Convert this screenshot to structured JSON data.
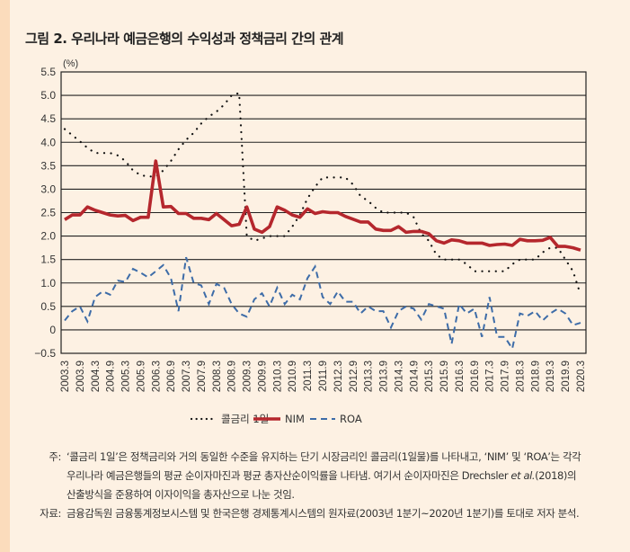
{
  "title": "그림 2.  우리나라 예금은행의 수익성과 정책금리 간의 관계",
  "chart_data": {
    "type": "line",
    "title": "",
    "ylabel": "(%)",
    "xlabel": "",
    "ylim": [
      -0.5,
      5.5
    ],
    "yticks": [
      "5.5",
      "5.0",
      "4.5",
      "4.0",
      "3.5",
      "3.0",
      "2.5",
      "2.0",
      "1.5",
      "1.0",
      "0.5",
      "0",
      "−0.5"
    ],
    "ytick_values": [
      5.5,
      5.0,
      4.5,
      4.0,
      3.5,
      3.0,
      2.5,
      2.0,
      1.5,
      1.0,
      0.5,
      0,
      -0.5
    ],
    "grid": "horizontal",
    "legend_position": "bottom",
    "x_start": "2003Q1",
    "x_end": "2020Q1",
    "frequency": "quarterly",
    "xtick_labels": [
      "2003.3",
      "2003.9",
      "2004.3",
      "2004.9",
      "2005.3",
      "2005.9",
      "2006.3",
      "2006.9",
      "2007.3",
      "2007.9",
      "2008.3",
      "2008.9",
      "2009.3",
      "2009.9",
      "2010.3",
      "2010.9",
      "2011.3",
      "2011.9",
      "2012.3",
      "2012.9",
      "2013.3",
      "2013.9",
      "2014.3",
      "2014.9",
      "2015.3",
      "2015.9",
      "2016.3",
      "2016.9",
      "2017.3",
      "2017.9",
      "2018.3",
      "2018.9",
      "2019.3",
      "2019.9",
      "2020.3"
    ],
    "series": [
      {
        "name": "콜금리 1일",
        "color": "#111111",
        "style": "dotted",
        "values": [
          4.28,
          4.15,
          4.02,
          3.88,
          3.77,
          3.77,
          3.77,
          3.72,
          3.6,
          3.4,
          3.3,
          3.27,
          3.27,
          3.4,
          3.6,
          3.85,
          4.05,
          4.2,
          4.4,
          4.55,
          4.65,
          4.8,
          5.0,
          5.05,
          2.0,
          1.9,
          1.95,
          2.0,
          2.0,
          2.0,
          2.2,
          2.45,
          2.8,
          3.05,
          3.25,
          3.25,
          3.25,
          3.25,
          3.1,
          2.85,
          2.75,
          2.6,
          2.5,
          2.5,
          2.5,
          2.5,
          2.4,
          2.05,
          1.9,
          1.6,
          1.5,
          1.5,
          1.5,
          1.4,
          1.25,
          1.25,
          1.25,
          1.25,
          1.25,
          1.4,
          1.5,
          1.5,
          1.5,
          1.65,
          1.75,
          1.75,
          1.5,
          1.25,
          0.75
        ]
      },
      {
        "name": "NIM",
        "color": "#b5272d",
        "style": "solid",
        "values": [
          2.35,
          2.45,
          2.45,
          2.62,
          2.55,
          2.5,
          2.45,
          2.43,
          2.44,
          2.33,
          2.4,
          2.4,
          3.6,
          2.62,
          2.63,
          2.48,
          2.48,
          2.38,
          2.38,
          2.35,
          2.48,
          2.35,
          2.22,
          2.25,
          2.62,
          2.15,
          2.08,
          2.2,
          2.62,
          2.55,
          2.45,
          2.4,
          2.58,
          2.48,
          2.52,
          2.5,
          2.5,
          2.42,
          2.36,
          2.3,
          2.3,
          2.15,
          2.12,
          2.12,
          2.2,
          2.08,
          2.1,
          2.1,
          2.05,
          1.9,
          1.85,
          1.92,
          1.9,
          1.85,
          1.85,
          1.85,
          1.8,
          1.82,
          1.83,
          1.8,
          1.93,
          1.9,
          1.9,
          1.91,
          1.97,
          1.78,
          1.78,
          1.75,
          1.7
        ]
      },
      {
        "name": "ROA",
        "color": "#3d6ca8",
        "style": "dashed",
        "values": [
          0.2,
          0.4,
          0.5,
          0.18,
          0.7,
          0.82,
          0.75,
          1.05,
          1.02,
          1.3,
          1.22,
          1.12,
          1.25,
          1.38,
          1.1,
          0.4,
          1.55,
          1.0,
          0.95,
          0.55,
          0.98,
          0.9,
          0.55,
          0.35,
          0.28,
          0.65,
          0.78,
          0.5,
          0.9,
          0.55,
          0.75,
          0.65,
          1.1,
          1.35,
          0.7,
          0.55,
          0.82,
          0.6,
          0.6,
          0.35,
          0.5,
          0.4,
          0.4,
          0.05,
          0.4,
          0.5,
          0.45,
          0.22,
          0.55,
          0.5,
          0.45,
          -0.3,
          0.55,
          0.35,
          0.45,
          -0.15,
          0.7,
          -0.15,
          -0.15,
          -0.4,
          0.35,
          0.3,
          0.4,
          0.2,
          0.35,
          0.45,
          0.35,
          0.1,
          0.15
        ]
      }
    ]
  },
  "notes": {
    "note_label": "주:",
    "note_line1": "‘콜금리 1일’은 정책금리와 거의 동일한 수준을 유지하는 단기 시장금리인 콜금리(1일물)를 나타내고, ‘NIM’ 및 ‘ROA’는 각각",
    "note_line2_a": "우리나라 예금은행들의 평균 순이자마진과 평균 총자산순이익률을 나타냄. 여기서 순이자마진은 Drechsler ",
    "note_line2_em": "et al.",
    "note_line2_b": "(2018)의",
    "note_line3": "산출방식을 준용하여 이자이익을 총자산으로 나눈 것임.",
    "source_label": "자료:",
    "source_text": "금융감독원 금융통계정보시스템 및 한국은행 경제통계시스템의 원자료(2003년 1분기~2020년 1분기)를 토대로 저자 분석."
  }
}
